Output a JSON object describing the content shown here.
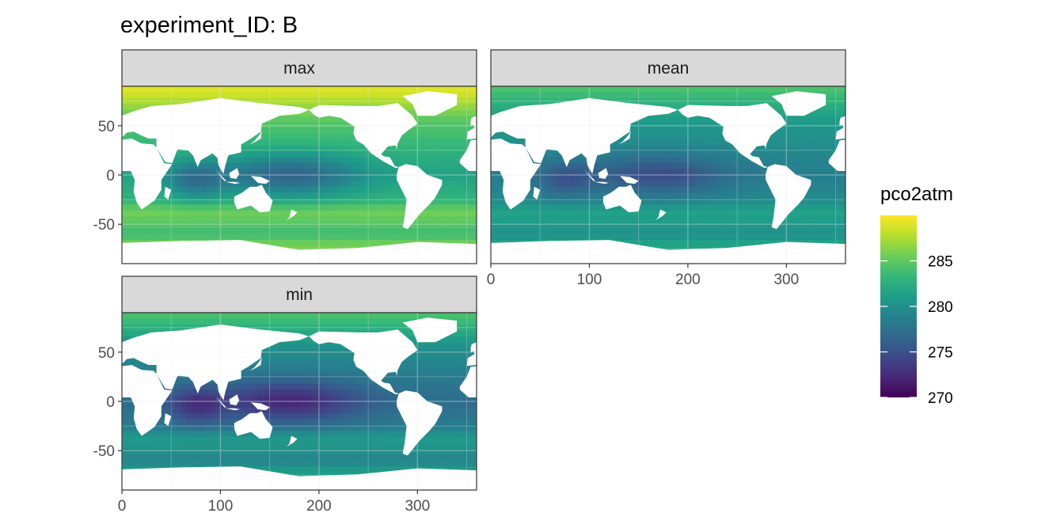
{
  "title": "experiment_ID: B",
  "chart_data": {
    "type": "heatmap",
    "title": "experiment_ID: B",
    "facet_variable": "statistic",
    "panels": [
      {
        "label": "max",
        "mean_level": 281.5,
        "value_range": [
          274,
          289
        ]
      },
      {
        "label": "mean",
        "mean_level": 278.5,
        "value_range": [
          274,
          285
        ]
      },
      {
        "label": "min",
        "mean_level": 277.0,
        "value_range": [
          270,
          284
        ]
      }
    ],
    "x_axis": {
      "label": "",
      "range": [
        0,
        360
      ],
      "ticks": [
        0,
        100,
        200,
        300
      ]
    },
    "y_axis": {
      "label": "",
      "range": [
        -90,
        90
      ],
      "ticks": [
        50,
        0,
        -50
      ]
    },
    "grid": true,
    "legend": {
      "title": "pco2atm",
      "position": "right",
      "range": [
        270,
        290
      ],
      "ticks": [
        285,
        280,
        275,
        270
      ],
      "colormap": "viridis",
      "colors": [
        "#440154",
        "#482878",
        "#3e4989",
        "#31688e",
        "#26828e",
        "#1f9e89",
        "#35b779",
        "#6ece58",
        "#b5de2b",
        "#fde725"
      ]
    },
    "land_color": "#ffffff"
  }
}
